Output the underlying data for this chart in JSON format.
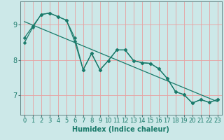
{
  "xlabel": "Humidex (Indice chaleur)",
  "xlim": [
    -0.5,
    23.5
  ],
  "ylim": [
    6.45,
    9.65
  ],
  "yticks": [
    7,
    8,
    9
  ],
  "xticks": [
    0,
    1,
    2,
    3,
    4,
    5,
    6,
    7,
    8,
    9,
    10,
    11,
    12,
    13,
    14,
    15,
    16,
    17,
    18,
    19,
    20,
    21,
    22,
    23
  ],
  "bg_color": "#cce8e8",
  "grid_color": "#e8a0a0",
  "line_color": "#1a7a6a",
  "line1_y": [
    8.62,
    8.95,
    9.28,
    9.32,
    9.22,
    9.12,
    8.62,
    7.72,
    8.18,
    7.72,
    7.98,
    8.28,
    8.28,
    7.98,
    7.92,
    7.9,
    7.75,
    7.48,
    7.1,
    7.02,
    6.78,
    6.88,
    6.8,
    6.88
  ],
  "line2_y": [
    8.48,
    8.92,
    9.28,
    9.32,
    9.22,
    9.12,
    8.52,
    7.72,
    8.18,
    7.72,
    7.98,
    8.28,
    8.28,
    7.98,
    7.92,
    7.9,
    7.75,
    7.48,
    7.1,
    7.02,
    6.78,
    6.88,
    6.8,
    6.88
  ],
  "trend_y_start": 9.08,
  "trend_y_end": 6.82,
  "line_width": 0.9,
  "marker_size": 2.5,
  "xlabel_fontsize": 7,
  "tick_fontsize": 6,
  "ytick_fontsize": 7
}
